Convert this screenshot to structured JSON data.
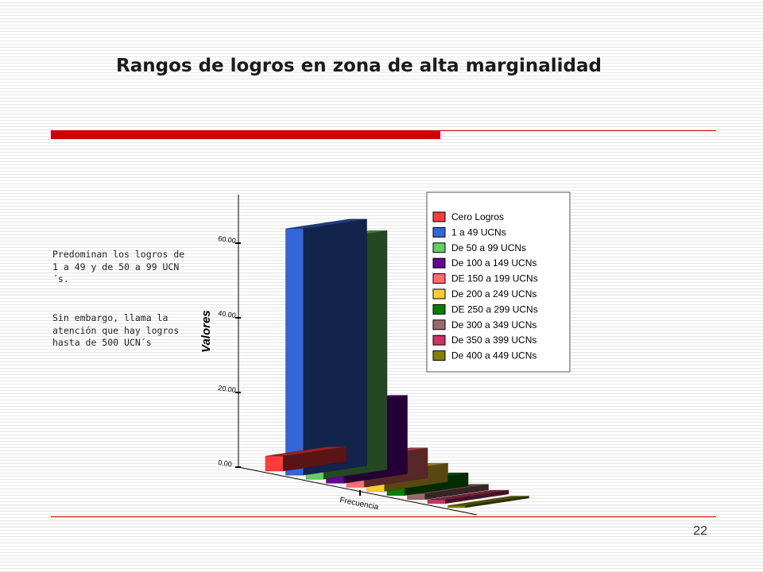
{
  "slide": {
    "title": "Rangos de logros en zona de alta marginalidad",
    "note_1": "Predominan los logros de 1 a 49 y de 50 a 99 UCN´s.",
    "note_2": "Sin embargo, llama la atención que hay logros hasta de 500 UCN´s",
    "page_number": "22"
  },
  "chart_data": {
    "type": "bar",
    "style": "3d-column",
    "categories": [
      "Frecuencia"
    ],
    "xlabel": "Frecuencia",
    "ylabel": "Valores",
    "ylim": [
      0,
      70
    ],
    "yticks": [
      "0.00",
      "20.00",
      "40.00",
      "60.00"
    ],
    "grid": false,
    "legend_position": "top-right",
    "series": [
      {
        "name": "Cero Logros",
        "value": 4,
        "color": "#ff3b3b"
      },
      {
        "name": "1 a 49 UCNs",
        "value": 66,
        "color": "#3366d6"
      },
      {
        "name": "De 50 a 99 UCNs",
        "value": 64,
        "color": "#66cc66"
      },
      {
        "name": "De 100 a 149 UCNs",
        "value": 21,
        "color": "#660099"
      },
      {
        "name": "DE 150 a 199 UCNs",
        "value": 8,
        "color": "#ff6e6e"
      },
      {
        "name": "De 200 a 249 UCNs",
        "value": 5,
        "color": "#ffcc33"
      },
      {
        "name": "DE 250 a 299 UCNs",
        "value": 3.5,
        "color": "#008000"
      },
      {
        "name": "De 300 a 349 UCNs",
        "value": 1.5,
        "color": "#9a6a6a"
      },
      {
        "name": "De 350 a 399 UCNs",
        "value": 1,
        "color": "#cc3366"
      },
      {
        "name": "De 400 a 449 UCNs",
        "value": 0.5,
        "color": "#808000"
      }
    ]
  }
}
